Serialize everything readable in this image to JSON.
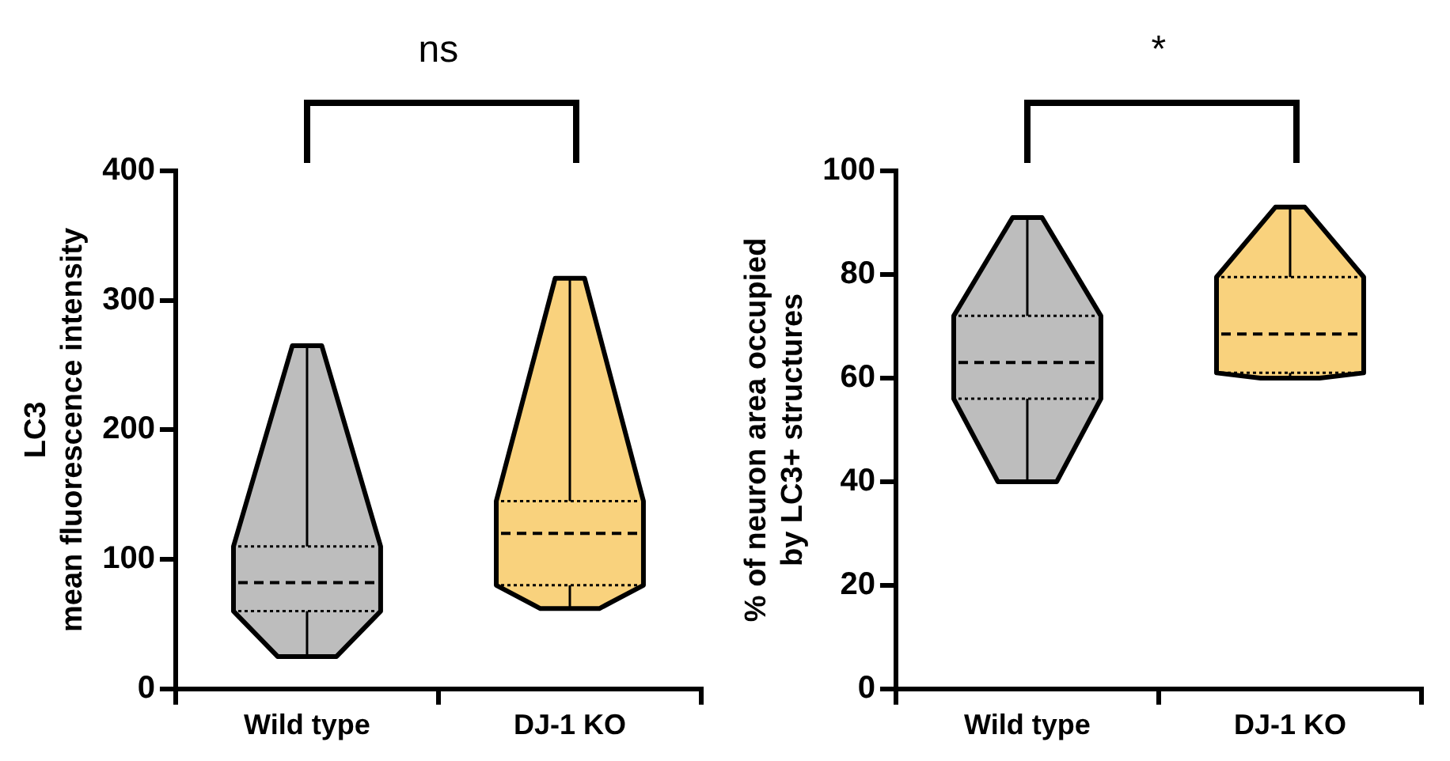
{
  "chart_data": [
    {
      "type": "box",
      "ylabel": "LC3\nmean fluorescence intensity",
      "categories": [
        "Wild type",
        "DJ-1 KO"
      ],
      "colors": [
        "#bdbdbd",
        "#f9d27d"
      ],
      "boxes": [
        {
          "low": 25,
          "q1": 60,
          "median": 82,
          "q3": 110,
          "high": 265
        },
        {
          "low": 62,
          "q1": 80,
          "median": 120,
          "q3": 145,
          "high": 317
        }
      ],
      "ylim": [
        0,
        400
      ],
      "yticks": [
        0,
        100,
        200,
        300,
        400
      ],
      "grid": false,
      "annotations": [
        "ns"
      ]
    },
    {
      "type": "box",
      "ylabel": "% of neuron area occupied\nby LC3+ structures",
      "categories": [
        "Wild type",
        "DJ-1 KO"
      ],
      "colors": [
        "#bdbdbd",
        "#f9d27d"
      ],
      "boxes": [
        {
          "low": 40,
          "q1": 56,
          "median": 63,
          "q3": 72,
          "high": 91
        },
        {
          "low": 60,
          "q1": 61,
          "median": 68.5,
          "q3": 79.5,
          "high": 93
        }
      ],
      "ylim": [
        0,
        100
      ],
      "yticks": [
        0,
        20,
        40,
        60,
        80,
        100
      ],
      "grid": false,
      "annotations": [
        "*"
      ]
    }
  ]
}
